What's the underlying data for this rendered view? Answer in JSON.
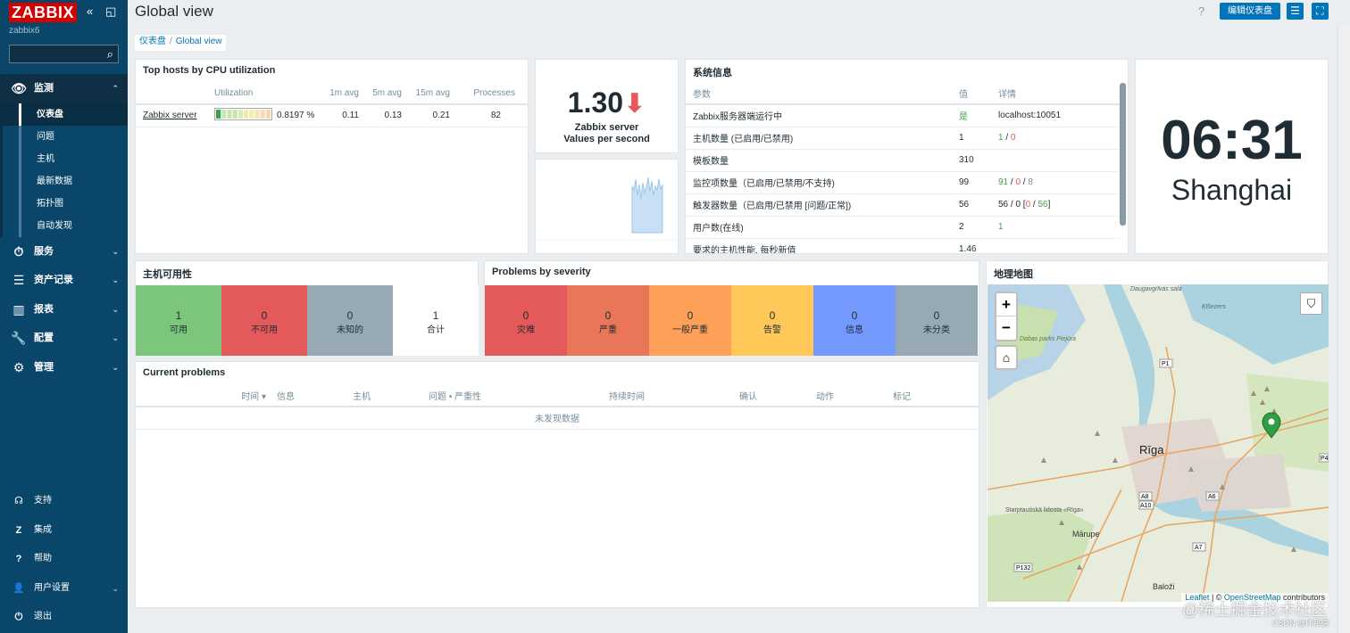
{
  "app": {
    "logo": "ZABBIX",
    "host": "zabbix6",
    "collapse_icon": "«",
    "kiosk_icon": "◱"
  },
  "sidebar": {
    "search_placeholder": "",
    "menu": [
      {
        "label": "监测",
        "icon": "👁",
        "chevron": "⌃"
      },
      {
        "label": "服务",
        "icon": "⏱",
        "chevron": "⌄"
      },
      {
        "label": "资产记录",
        "icon": "☰",
        "chevron": "⌄"
      },
      {
        "label": "报表",
        "icon": "▥",
        "chevron": "⌄"
      },
      {
        "label": "配置",
        "icon": "🔧",
        "chevron": "⌄"
      },
      {
        "label": "管理",
        "icon": "⚙",
        "chevron": "⌄"
      }
    ],
    "submenu": [
      "仪表盘",
      "问题",
      "主机",
      "最新数据",
      "拓扑图",
      "自动发现"
    ],
    "bottom": [
      {
        "label": "支持",
        "icon": "☊"
      },
      {
        "label": "集成",
        "icon": "Z"
      },
      {
        "label": "帮助",
        "icon": "?"
      },
      {
        "label": "用户设置",
        "icon": "👤",
        "chevron": "⌄"
      },
      {
        "label": "退出",
        "icon": "⏻"
      }
    ]
  },
  "header": {
    "title": "Global view",
    "help": "?",
    "edit_button": "编辑仪表盘",
    "menu_icon": "☰",
    "fullscreen_icon": "⛶"
  },
  "breadcrumb": {
    "parent": "仪表盘",
    "sep": "/",
    "current": "Global view"
  },
  "top_hosts": {
    "title": "Top hosts by CPU utilization",
    "headers": [
      "",
      "Utilization",
      "",
      "1m avg",
      "5m avg",
      "15m avg",
      "Processes"
    ],
    "rows": [
      {
        "host": "Zabbix server",
        "util": "0.8197 %",
        "util_fraction": 0.008197,
        "m1": "0.11",
        "m5": "0.13",
        "m15": "0.21",
        "proc": "82"
      }
    ]
  },
  "vps": {
    "value": "1.30",
    "arrow": "⬇",
    "line1": "Zabbix server",
    "line2": "Values per second"
  },
  "sysinfo": {
    "title": "系统信息",
    "headers": [
      "参数",
      "值",
      "详情"
    ],
    "rows": [
      {
        "param": "Zabbix服务器端运行中",
        "value": "是",
        "value_color": "#429e47",
        "details": [
          {
            "t": "localhost:10051",
            "c": "#1f2c33"
          }
        ]
      },
      {
        "param": "主机数量 (已启用/已禁用)",
        "value": "1",
        "details": [
          {
            "t": "1",
            "c": "#429e47"
          },
          {
            "t": " / ",
            "c": "#1f2c33"
          },
          {
            "t": "0",
            "c": "#e45959"
          }
        ]
      },
      {
        "param": "模板数量",
        "value": "310",
        "details": []
      },
      {
        "param": "监控项数量（已启用/已禁用/不支持)",
        "value": "99",
        "details": [
          {
            "t": "91",
            "c": "#429e47"
          },
          {
            "t": " / ",
            "c": "#1f2c33"
          },
          {
            "t": "0",
            "c": "#e45959"
          },
          {
            "t": " / ",
            "c": "#1f2c33"
          },
          {
            "t": "8",
            "c": "#768d99"
          }
        ]
      },
      {
        "param": "触发器数量（已启用/已禁用 [问题/正常])",
        "value": "56",
        "details": [
          {
            "t": "56 / 0 [",
            "c": "#1f2c33"
          },
          {
            "t": "0",
            "c": "#e45959"
          },
          {
            "t": " / ",
            "c": "#1f2c33"
          },
          {
            "t": "56",
            "c": "#429e47"
          },
          {
            "t": "]",
            "c": "#1f2c33"
          }
        ]
      },
      {
        "param": "用户数(在线)",
        "value": "2",
        "details": [
          {
            "t": "1",
            "c": "#429e47"
          }
        ]
      },
      {
        "param": "要求的主机性能, 每秒新值",
        "value": "1.46",
        "details": []
      }
    ]
  },
  "clock": {
    "time": "06:31",
    "city": "Shanghai"
  },
  "host_avail": {
    "title": "主机可用性",
    "tiles": [
      {
        "n": "1",
        "label": "可用",
        "color": "#7bc67b"
      },
      {
        "n": "0",
        "label": "不可用",
        "color": "#e45959"
      },
      {
        "n": "0",
        "label": "未知的",
        "color": "#97aab3"
      },
      {
        "n": "1",
        "label": "合计",
        "color": "#ffffff"
      }
    ]
  },
  "severity": {
    "title": "Problems by severity",
    "tiles": [
      {
        "n": "0",
        "label": "灾难",
        "color": "#e45959"
      },
      {
        "n": "0",
        "label": "严重",
        "color": "#e97659"
      },
      {
        "n": "0",
        "label": "一般严重",
        "color": "#ffa059"
      },
      {
        "n": "0",
        "label": "告警",
        "color": "#ffc859"
      },
      {
        "n": "0",
        "label": "信息",
        "color": "#7499ff"
      },
      {
        "n": "0",
        "label": "未分类",
        "color": "#97aab3"
      }
    ]
  },
  "problems": {
    "title": "Current problems",
    "headers": [
      "时间 ▾",
      "信息",
      "主机",
      "问题 • 严重性",
      "持续时间",
      "确认",
      "动作",
      "标记"
    ],
    "empty": "未发现数据"
  },
  "geomap": {
    "title": "地理地图",
    "zoom_in": "+",
    "zoom_out": "−",
    "home": "⌂",
    "filter": "⛉",
    "labels": [
      "Daugavgrīvas sala",
      "Ķīšezers",
      "Dabas parks Piejūra",
      "Rīga",
      "Mārupe",
      "Starptautiskā lidosta «Rīga»",
      "Baloži",
      "P1",
      "A8",
      "A10",
      "A6",
      "A7",
      "P132",
      "P4"
    ],
    "attribution_leaflet": "Leaflet",
    "attribution_sep": " | © ",
    "attribution_osm": "OpenStreetMap",
    "attribution_tail": " contributors"
  },
  "watermark": "@稀土掘金技术社区",
  "csdn": "CSDN @IT邦德"
}
